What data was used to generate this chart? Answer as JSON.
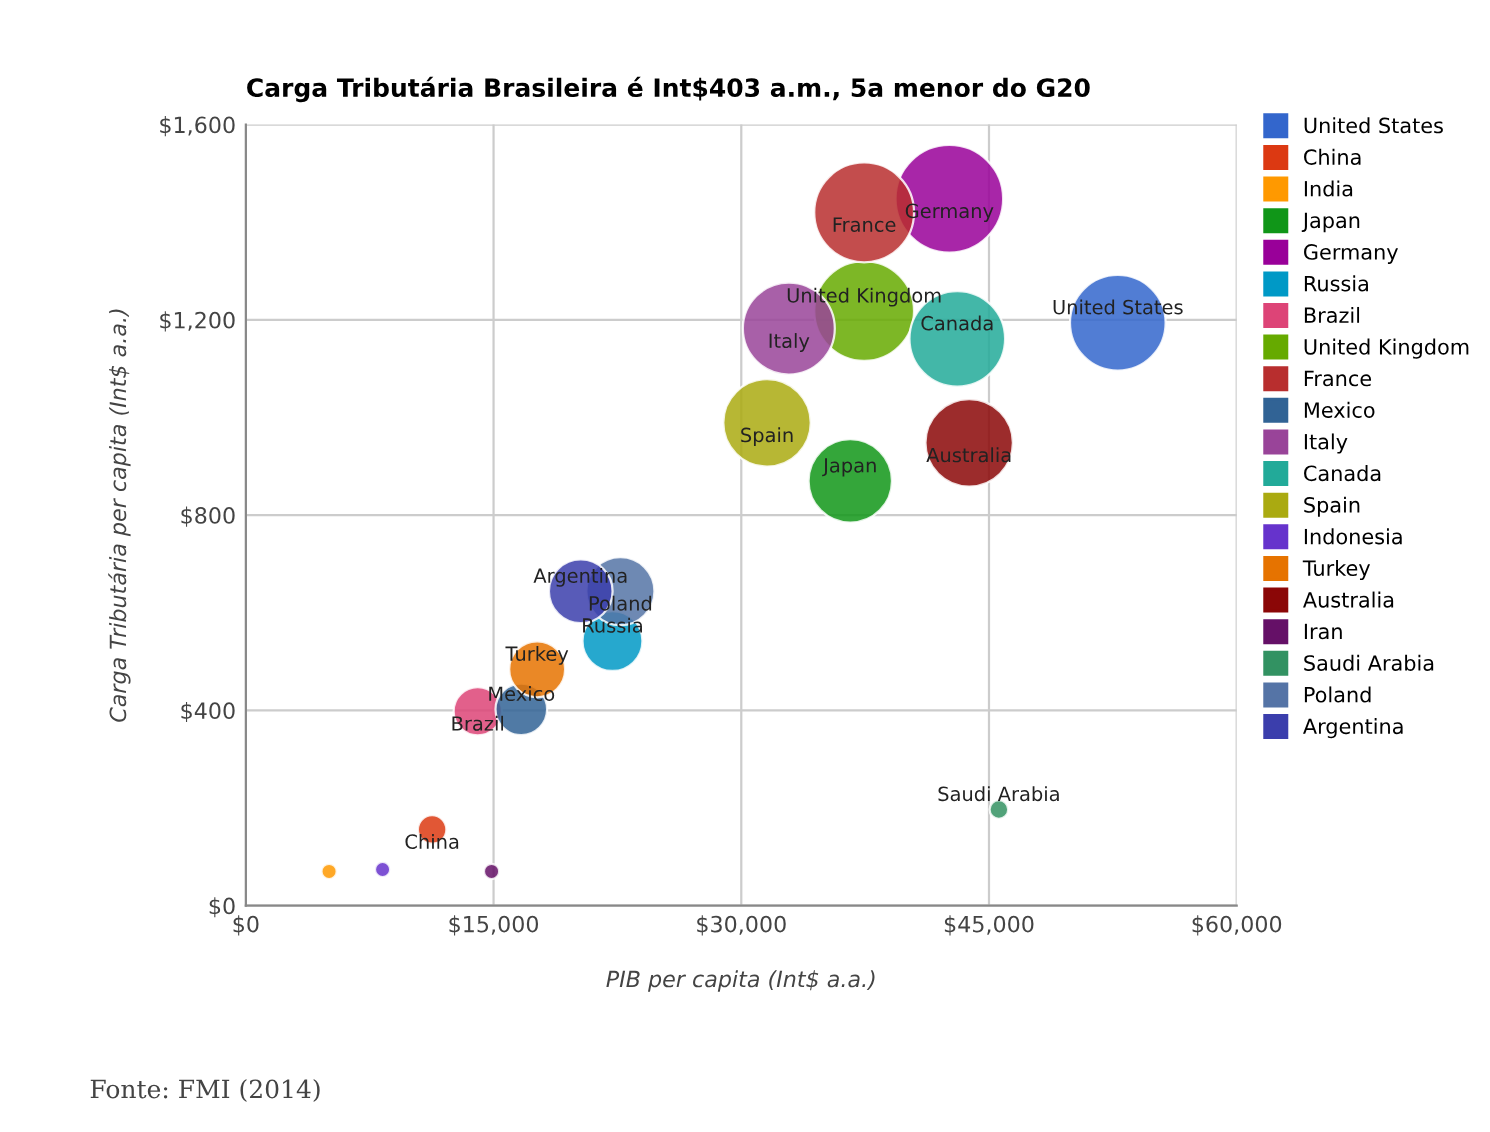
{
  "chart_data": {
    "type": "bubble",
    "title": "Carga Tributária Brasileira é Int$403 a.m., 5a menor do G20",
    "xlabel": "PIB per capita (Int$ a.a.)",
    "ylabel": "Carga Tributária per capita (Int$ a.a.)",
    "xlim": [
      0,
      60000
    ],
    "xticks": [
      {
        "value": 0,
        "label": "$0"
      },
      {
        "value": 15000,
        "label": "$15,000"
      },
      {
        "value": 30000,
        "label": "$30,000"
      },
      {
        "value": 45000,
        "label": "$45,000"
      },
      {
        "value": 60000,
        "label": "$60,000"
      }
    ],
    "ylim": [
      0,
      1600
    ],
    "yticks": [
      {
        "value": 0,
        "label": "$0"
      },
      {
        "value": 400,
        "label": "$400"
      },
      {
        "value": 800,
        "label": "$800"
      },
      {
        "value": 1200,
        "label": "$1,200"
      },
      {
        "value": 1600,
        "label": "$1,600"
      }
    ],
    "grid": true,
    "legend": "right",
    "series": [
      {
        "name": "United States",
        "color": "#3366cc",
        "x": [
          52800
        ],
        "values": [
          1194
        ],
        "sizes": [
          0.79
        ]
      },
      {
        "name": "China",
        "color": "#dc3912",
        "x": [
          11280
        ],
        "values": [
          156
        ],
        "sizes": [
          0.07
        ]
      },
      {
        "name": "India",
        "color": "#ff9900",
        "x": [
          5040
        ],
        "values": [
          70
        ],
        "sizes": [
          0.02
        ]
      },
      {
        "name": "Japan",
        "color": "#109618",
        "x": [
          36600
        ],
        "values": [
          870
        ],
        "sizes": [
          0.6
        ]
      },
      {
        "name": "Germany",
        "color": "#990099",
        "x": [
          42600
        ],
        "values": [
          1448
        ],
        "sizes": [
          1
        ]
      },
      {
        "name": "Russia",
        "color": "#0099c6",
        "x": [
          22200
        ],
        "values": [
          542
        ],
        "sizes": [
          0.31
        ]
      },
      {
        "name": "Brazil",
        "color": "#dd4477",
        "x": [
          14040
        ],
        "values": [
          398
        ],
        "sizes": [
          0.2
        ]
      },
      {
        "name": "United Kingdom",
        "color": "#66aa00",
        "x": [
          37440
        ],
        "values": [
          1218
        ],
        "sizes": [
          0.86
        ]
      },
      {
        "name": "France",
        "color": "#b82e2e",
        "x": [
          37440
        ],
        "values": [
          1420
        ],
        "sizes": [
          0.86
        ]
      },
      {
        "name": "Mexico",
        "color": "#316395",
        "x": [
          16680
        ],
        "values": [
          402
        ],
        "sizes": [
          0.23
        ]
      },
      {
        "name": "Italy",
        "color": "#994499",
        "x": [
          32880
        ],
        "values": [
          1182
        ],
        "sizes": [
          0.73
        ]
      },
      {
        "name": "Canada",
        "color": "#22aa99",
        "x": [
          43080
        ],
        "values": [
          1161
        ],
        "sizes": [
          0.79
        ]
      },
      {
        "name": "Spain",
        "color": "#aaaa11",
        "x": [
          31560
        ],
        "values": [
          989
        ],
        "sizes": [
          0.66
        ]
      },
      {
        "name": "Indonesia",
        "color": "#6633cc",
        "x": [
          8280
        ],
        "values": [
          74
        ],
        "sizes": [
          0.02
        ]
      },
      {
        "name": "Turkey",
        "color": "#e67300",
        "x": [
          17640
        ],
        "values": [
          484
        ],
        "sizes": [
          0.27
        ]
      },
      {
        "name": "Australia",
        "color": "#8b0707",
        "x": [
          43800
        ],
        "values": [
          948
        ],
        "sizes": [
          0.66
        ]
      },
      {
        "name": "Iran",
        "color": "#651067",
        "x": [
          14880
        ],
        "values": [
          70
        ],
        "sizes": [
          0.02
        ]
      },
      {
        "name": "Saudi Arabia",
        "color": "#329262",
        "x": [
          45600
        ],
        "values": [
          197
        ],
        "sizes": [
          0.03
        ]
      },
      {
        "name": "Poland",
        "color": "#5574a6",
        "x": [
          22680
        ],
        "values": [
          644
        ],
        "sizes": [
          0.4
        ]
      },
      {
        "name": "Argentina",
        "color": "#3b3eac",
        "x": [
          20280
        ],
        "values": [
          644
        ],
        "sizes": [
          0.35
        ]
      }
    ],
    "annotations": [
      {
        "text": "United States",
        "x": 52800,
        "y": 1194
      },
      {
        "text": "China",
        "x": 11280,
        "y": 156
      },
      {
        "text": "Japan",
        "x": 36600,
        "y": 870
      },
      {
        "text": "Germany",
        "x": 42600,
        "y": 1448
      },
      {
        "text": "Russia",
        "x": 22200,
        "y": 542
      },
      {
        "text": "Brazil",
        "x": 14040,
        "y": 398
      },
      {
        "text": "United Kingdom",
        "x": 37440,
        "y": 1218
      },
      {
        "text": "France",
        "x": 37440,
        "y": 1420
      },
      {
        "text": "Mexico",
        "x": 16680,
        "y": 402
      },
      {
        "text": "Italy",
        "x": 32880,
        "y": 1182
      },
      {
        "text": "Canada",
        "x": 43080,
        "y": 1161
      },
      {
        "text": "Spain",
        "x": 31560,
        "y": 989
      },
      {
        "text": "Turkey",
        "x": 17640,
        "y": 484
      },
      {
        "text": "Australia",
        "x": 43800,
        "y": 948
      },
      {
        "text": "Saudi Arabia",
        "x": 45600,
        "y": 197
      },
      {
        "text": "Poland",
        "x": 22680,
        "y": 644
      },
      {
        "text": "Argentina",
        "x": 20280,
        "y": 644
      },
      "Fonte: FMI (2014)"
    ]
  }
}
